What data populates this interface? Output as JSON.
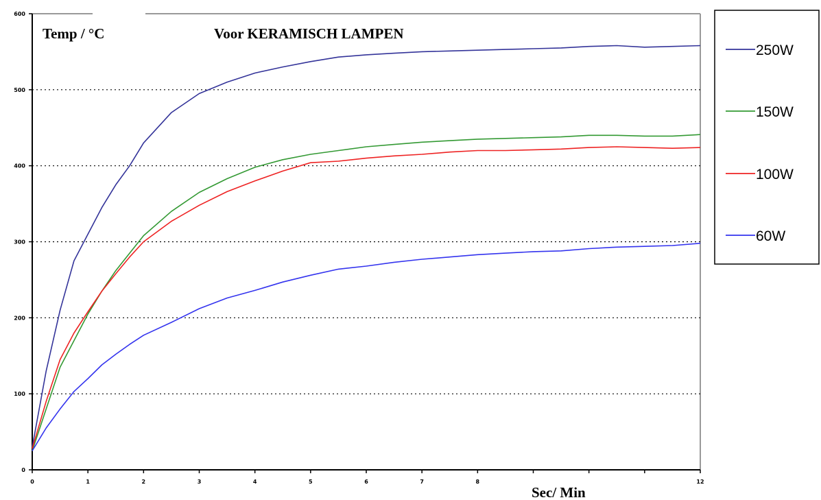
{
  "chart_data": {
    "type": "line",
    "title": "Voor KERAMISCH LAMPEN",
    "ylabel": "Temp / °C",
    "xlabel": "Sec/ Min",
    "ylim": [
      0,
      600
    ],
    "xlim": [
      0,
      12
    ],
    "y_ticks": [
      "0",
      "100",
      "200",
      "300",
      "400",
      "500",
      "600"
    ],
    "x_tick_labels": [
      "0",
      "1",
      "2",
      "3",
      "4",
      "5",
      "6",
      "7",
      "8",
      "12"
    ],
    "x_tick_values": [
      0,
      1,
      2,
      3,
      4,
      5,
      6,
      7,
      8,
      12
    ],
    "x_minor_ticks": [
      9,
      10,
      11
    ],
    "grid": "horizontal dotted",
    "legend_position": "right",
    "series": [
      {
        "name": "250W",
        "color": "#333399",
        "x": [
          0,
          0.25,
          0.5,
          0.75,
          1,
          1.25,
          1.5,
          1.75,
          2,
          2.5,
          3,
          3.5,
          4,
          4.5,
          5,
          5.5,
          6,
          6.5,
          7,
          7.5,
          8,
          8.5,
          9,
          9.5,
          10,
          10.5,
          11,
          11.5,
          12
        ],
        "y": [
          30,
          130,
          210,
          275,
          310,
          345,
          375,
          400,
          430,
          470,
          495,
          510,
          522,
          530,
          537,
          543,
          546,
          548,
          550,
          551,
          552,
          553,
          554,
          555,
          557,
          558,
          556,
          557,
          558
        ]
      },
      {
        "name": "150W",
        "color": "#339933",
        "x": [
          0,
          0.25,
          0.5,
          0.75,
          1,
          1.25,
          1.5,
          1.75,
          2,
          2.5,
          3,
          3.5,
          4,
          4.5,
          5,
          5.5,
          6,
          6.5,
          7,
          7.5,
          8,
          8.5,
          9,
          9.5,
          10,
          10.5,
          11,
          11.5,
          12
        ],
        "y": [
          25,
          80,
          135,
          170,
          205,
          235,
          262,
          285,
          308,
          340,
          365,
          383,
          398,
          408,
          415,
          420,
          425,
          428,
          431,
          433,
          435,
          436,
          437,
          438,
          440,
          440,
          439,
          439,
          441
        ]
      },
      {
        "name": "100W",
        "color": "#ee2222",
        "x": [
          0,
          0.25,
          0.5,
          0.75,
          1,
          1.25,
          1.5,
          1.75,
          2,
          2.5,
          3,
          3.5,
          4,
          4.5,
          5,
          5.5,
          6,
          6.5,
          7,
          7.5,
          8,
          8.5,
          9,
          9.5,
          10,
          10.5,
          11,
          11.5,
          12
        ],
        "y": [
          28,
          90,
          145,
          180,
          208,
          235,
          258,
          280,
          300,
          327,
          348,
          366,
          380,
          393,
          404,
          406,
          410,
          413,
          415,
          418,
          420,
          420,
          421,
          422,
          424,
          425,
          424,
          423,
          424
        ]
      },
      {
        "name": "60W",
        "color": "#3333ee",
        "x": [
          0,
          0.25,
          0.5,
          0.75,
          1,
          1.25,
          1.5,
          1.75,
          2,
          2.5,
          3,
          3.5,
          4,
          4.5,
          5,
          5.5,
          6,
          6.5,
          7,
          7.5,
          8,
          8.5,
          9,
          9.5,
          10,
          10.5,
          11,
          11.5,
          12
        ],
        "y": [
          25,
          55,
          80,
          103,
          120,
          138,
          152,
          165,
          177,
          194,
          212,
          226,
          236,
          247,
          256,
          264,
          268,
          273,
          277,
          280,
          283,
          285,
          287,
          288,
          291,
          293,
          294,
          295,
          298
        ]
      }
    ]
  }
}
